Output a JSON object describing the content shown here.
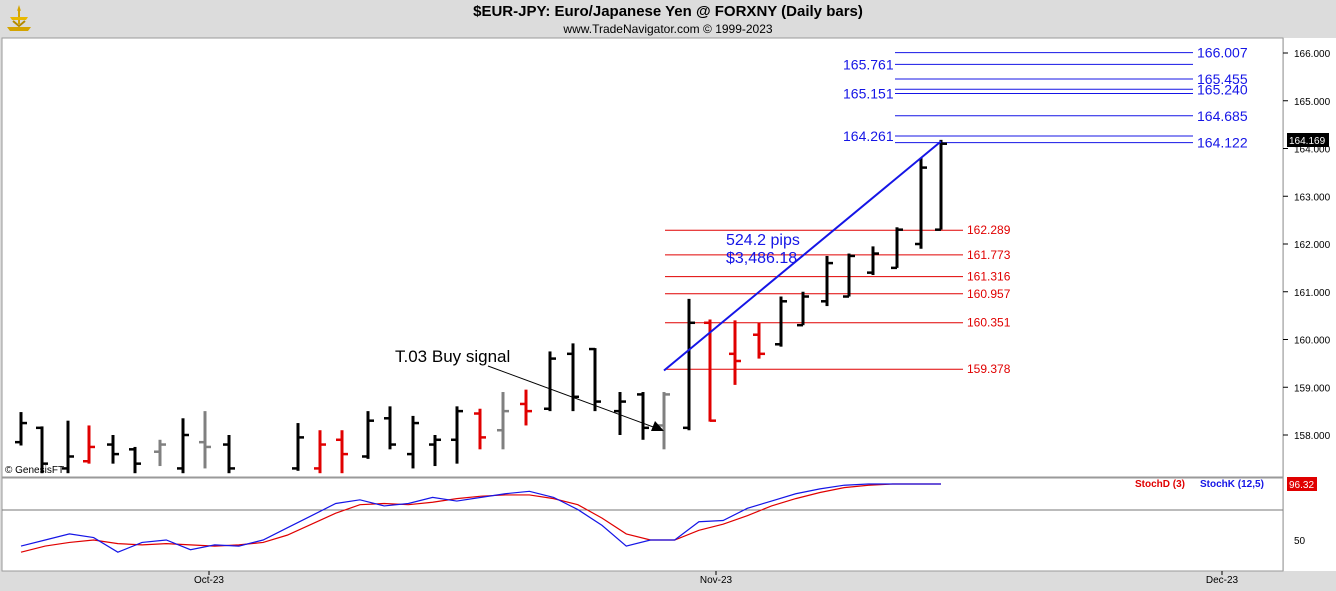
{
  "header": {
    "title": "$EUR-JPY:  Euro/Japanese Yen @ FORXNY  (Daily bars)",
    "subtitle": "www.TradeNavigator.com © 1999-2023"
  },
  "copyright": "© GenesisFT",
  "colors": {
    "up": "#000000",
    "down": "#e00000",
    "neutral": "#808080",
    "blue": "#1515e6",
    "red": "#e00000"
  },
  "chart_data": {
    "type": "ohlc",
    "price_axis": {
      "ticks": [
        "166.000",
        "165.000",
        "164.000",
        "163.000",
        "162.000",
        "161.000",
        "160.000",
        "159.000",
        "158.000"
      ],
      "ylim": [
        157.25,
        166.35
      ],
      "last_price": "164.169"
    },
    "x_axis": {
      "months": [
        "Oct-23",
        "Nov-23",
        "Dec-23"
      ]
    },
    "bars": [
      {
        "h": 158.48,
        "l": 157.78,
        "o": 157.85,
        "c": 158.25,
        "color": "black"
      },
      {
        "h": 158.18,
        "l": 157.2,
        "o": 158.15,
        "c": 157.4,
        "color": "black"
      },
      {
        "h": 158.3,
        "l": 157.2,
        "o": 157.3,
        "c": 157.55,
        "color": "black"
      },
      {
        "h": 158.2,
        "l": 157.4,
        "o": 157.45,
        "c": 157.75,
        "color": "red"
      },
      {
        "h": 158.0,
        "l": 157.4,
        "o": 157.8,
        "c": 157.6,
        "color": "black"
      },
      {
        "h": 157.75,
        "l": 157.2,
        "o": 157.7,
        "c": 157.4,
        "color": "black"
      },
      {
        "h": 157.9,
        "l": 157.35,
        "o": 157.65,
        "c": 157.8,
        "color": "grey"
      },
      {
        "h": 158.35,
        "l": 157.2,
        "o": 157.3,
        "c": 158.0,
        "color": "black"
      },
      {
        "h": 158.5,
        "l": 157.3,
        "o": 157.85,
        "c": 157.75,
        "color": "grey"
      },
      {
        "h": 158.0,
        "l": 157.2,
        "o": 157.8,
        "c": 157.3,
        "color": "black"
      },
      {
        "h": 158.25,
        "l": 157.25,
        "o": 157.3,
        "c": 157.95,
        "color": "black"
      },
      {
        "h": 158.1,
        "l": 157.2,
        "o": 157.3,
        "c": 157.8,
        "color": "red"
      },
      {
        "h": 158.1,
        "l": 157.2,
        "o": 157.9,
        "c": 157.6,
        "color": "red"
      },
      {
        "h": 158.5,
        "l": 157.5,
        "o": 157.55,
        "c": 158.3,
        "color": "black"
      },
      {
        "h": 158.6,
        "l": 157.7,
        "o": 158.35,
        "c": 157.8,
        "color": "black"
      },
      {
        "h": 158.4,
        "l": 157.3,
        "o": 157.6,
        "c": 158.25,
        "color": "black"
      },
      {
        "h": 158.0,
        "l": 157.35,
        "o": 157.8,
        "c": 157.9,
        "color": "black"
      },
      {
        "h": 158.6,
        "l": 157.4,
        "o": 157.9,
        "c": 158.5,
        "color": "black"
      },
      {
        "h": 158.55,
        "l": 157.7,
        "o": 158.45,
        "c": 157.95,
        "color": "red"
      },
      {
        "h": 158.9,
        "l": 157.7,
        "o": 158.1,
        "c": 158.5,
        "color": "grey"
      },
      {
        "h": 158.95,
        "l": 158.2,
        "o": 158.65,
        "c": 158.5,
        "color": "red"
      },
      {
        "h": 159.75,
        "l": 158.5,
        "o": 158.55,
        "c": 159.6,
        "color": "black"
      },
      {
        "h": 159.92,
        "l": 158.5,
        "o": 159.7,
        "c": 158.8,
        "color": "black"
      },
      {
        "h": 159.82,
        "l": 158.5,
        "o": 159.8,
        "c": 158.7,
        "color": "black"
      },
      {
        "h": 158.9,
        "l": 158.0,
        "o": 158.5,
        "c": 158.7,
        "color": "black"
      },
      {
        "h": 158.9,
        "l": 157.9,
        "o": 158.85,
        "c": 158.15,
        "color": "black"
      },
      {
        "h": 158.9,
        "l": 157.7,
        "o": 158.2,
        "c": 158.85,
        "color": "grey"
      },
      {
        "h": 160.85,
        "l": 158.1,
        "o": 158.15,
        "c": 160.35,
        "color": "black"
      },
      {
        "h": 160.42,
        "l": 158.28,
        "o": 160.35,
        "c": 158.3,
        "color": "red"
      },
      {
        "h": 160.4,
        "l": 159.05,
        "o": 159.7,
        "c": 159.55,
        "color": "red"
      },
      {
        "h": 160.35,
        "l": 159.6,
        "o": 160.1,
        "c": 159.7,
        "color": "red"
      },
      {
        "h": 160.9,
        "l": 159.85,
        "o": 159.9,
        "c": 160.8,
        "color": "black"
      },
      {
        "h": 161.0,
        "l": 160.3,
        "o": 160.3,
        "c": 160.9,
        "color": "black"
      },
      {
        "h": 161.75,
        "l": 160.7,
        "o": 160.8,
        "c": 161.6,
        "color": "black"
      },
      {
        "h": 161.8,
        "l": 160.9,
        "o": 160.9,
        "c": 161.75,
        "color": "black"
      },
      {
        "h": 161.95,
        "l": 161.35,
        "o": 161.4,
        "c": 161.8,
        "color": "black"
      },
      {
        "h": 162.35,
        "l": 161.5,
        "o": 161.5,
        "c": 162.3,
        "color": "black"
      },
      {
        "h": 163.8,
        "l": 161.9,
        "o": 162.0,
        "c": 163.6,
        "color": "black"
      },
      {
        "h": 164.18,
        "l": 162.3,
        "o": 162.3,
        "c": 164.1,
        "color": "black"
      }
    ],
    "bar_x_positions": [
      21,
      42,
      68,
      89,
      113,
      135,
      160,
      183,
      205,
      229,
      298,
      320,
      342,
      368,
      390,
      413,
      435,
      457,
      480,
      503,
      526,
      550,
      573,
      595,
      620,
      643,
      664,
      689,
      710,
      735,
      759,
      781,
      803,
      827,
      849,
      873,
      897,
      921,
      941
    ],
    "fib_down": {
      "levels": [
        {
          "value": 162.289,
          "label": "162.289"
        },
        {
          "value": 161.773,
          "label": "161.773"
        },
        {
          "value": 161.316,
          "label": "161.316"
        },
        {
          "value": 160.957,
          "label": "160.957"
        },
        {
          "value": 160.351,
          "label": "160.351"
        },
        {
          "value": 159.378,
          "label": "159.378"
        }
      ]
    },
    "targets": {
      "right": [
        {
          "value": 166.007,
          "label": "166.007"
        },
        {
          "value": 165.455,
          "label": "165.455"
        },
        {
          "value": 165.24,
          "label": "165.240"
        },
        {
          "value": 164.685,
          "label": "164.685"
        },
        {
          "value": 164.122,
          "label": "164.122"
        }
      ],
      "left": [
        {
          "value": 165.761,
          "label": "165.761"
        },
        {
          "value": 165.151,
          "label": "165.151"
        },
        {
          "value": 164.261,
          "label": "164.261"
        }
      ]
    },
    "trend_line": {
      "from": 159.35,
      "to": 164.15
    },
    "move": {
      "pips": "524.2 pips",
      "dollars": "$3,486.18"
    },
    "annotation": {
      "text": "T.03 Buy signal"
    },
    "stoch": {
      "legend": [
        {
          "name": "StochD (3)",
          "color": "#e00000"
        },
        {
          "name": "StochK (12,5)",
          "color": "#1515e6"
        }
      ],
      "last": "96.32",
      "tick": "50",
      "k": [
        45,
        50,
        55,
        52,
        40,
        48,
        50,
        42,
        46,
        45,
        50,
        60,
        70,
        80,
        83,
        78,
        80,
        85,
        82,
        85,
        88,
        90,
        85,
        75,
        62,
        45,
        50,
        50,
        65,
        66,
        76,
        82,
        88,
        92,
        95,
        96,
        96,
        96,
        96
      ],
      "d": [
        40,
        45,
        48,
        50,
        47,
        46,
        47,
        46,
        45,
        46,
        48,
        54,
        63,
        72,
        79,
        80,
        79,
        81,
        84,
        86,
        87,
        87,
        84,
        79,
        68,
        55,
        50,
        50,
        58,
        63,
        70,
        78,
        84,
        89,
        93,
        95,
        96,
        96,
        96
      ]
    }
  }
}
